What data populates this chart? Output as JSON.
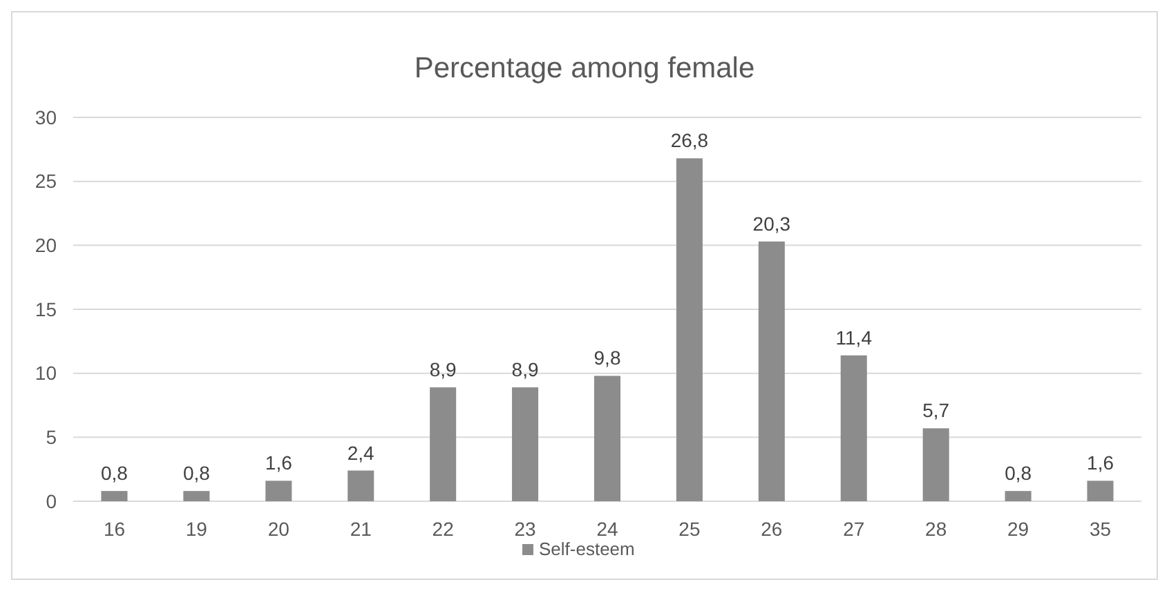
{
  "chart_data": {
    "type": "bar",
    "title": "Percentage among female",
    "categories": [
      "16",
      "19",
      "20",
      "21",
      "22",
      "23",
      "24",
      "25",
      "26",
      "27",
      "28",
      "29",
      "35"
    ],
    "series": [
      {
        "name": "Self-esteem",
        "color": "#8c8c8c",
        "values": [
          0.8,
          0.8,
          1.6,
          2.4,
          8.9,
          8.9,
          9.8,
          26.8,
          20.3,
          11.4,
          5.7,
          0.8,
          1.6
        ],
        "value_labels": [
          "0,8",
          "0,8",
          "1,6",
          "2,4",
          "8,9",
          "8,9",
          "9,8",
          "26,8",
          "20,3",
          "11,4",
          "5,7",
          "0,8",
          "1,6"
        ]
      }
    ],
    "ylim": [
      0,
      30
    ],
    "yticks": [
      0,
      5,
      10,
      15,
      20,
      25,
      30
    ],
    "grid": "y",
    "legend": "bottom"
  }
}
